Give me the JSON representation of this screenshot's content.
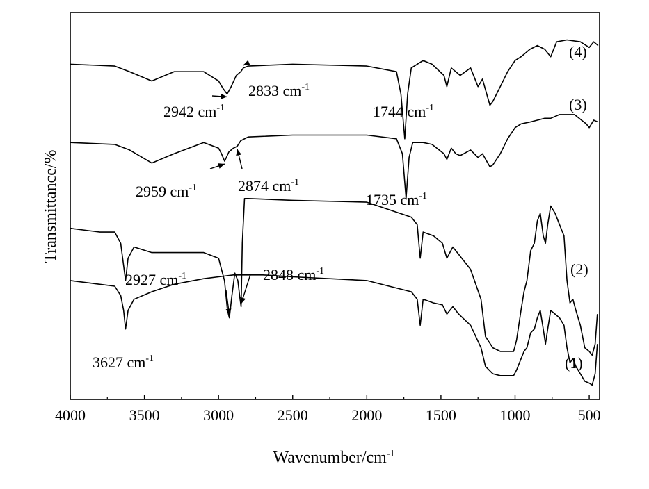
{
  "chart_data": {
    "type": "line",
    "xlabel": "Wavenumber/cm",
    "xlabel_sup": "-1",
    "ylabel": "Transmittance/%",
    "xlim": [
      4000,
      430
    ],
    "x_ticks": [
      4000,
      3500,
      3000,
      2500,
      2000,
      1500,
      1000,
      500
    ],
    "x_tick_labels": [
      "4000",
      "3500",
      "3000",
      "2500",
      "2000",
      "1500",
      "1000",
      "500"
    ],
    "y_ticks_shown": false,
    "grid": false,
    "series": [
      {
        "name": "(4)",
        "baseline": 0.88,
        "points": [
          [
            4000,
            0.88
          ],
          [
            3700,
            0.875
          ],
          [
            3600,
            0.86
          ],
          [
            3450,
            0.835
          ],
          [
            3300,
            0.86
          ],
          [
            3100,
            0.86
          ],
          [
            3000,
            0.835
          ],
          [
            2970,
            0.815
          ],
          [
            2942,
            0.8
          ],
          [
            2915,
            0.82
          ],
          [
            2880,
            0.85
          ],
          [
            2850,
            0.86
          ],
          [
            2833,
            0.87
          ],
          [
            2800,
            0.875
          ],
          [
            2500,
            0.88
          ],
          [
            2000,
            0.875
          ],
          [
            1800,
            0.86
          ],
          [
            1770,
            0.8
          ],
          [
            1744,
            0.68
          ],
          [
            1725,
            0.8
          ],
          [
            1700,
            0.87
          ],
          [
            1620,
            0.89
          ],
          [
            1560,
            0.88
          ],
          [
            1480,
            0.85
          ],
          [
            1460,
            0.82
          ],
          [
            1430,
            0.87
          ],
          [
            1400,
            0.86
          ],
          [
            1370,
            0.85
          ],
          [
            1300,
            0.87
          ],
          [
            1250,
            0.82
          ],
          [
            1220,
            0.84
          ],
          [
            1170,
            0.77
          ],
          [
            1150,
            0.78
          ],
          [
            1100,
            0.82
          ],
          [
            1050,
            0.86
          ],
          [
            1000,
            0.89
          ],
          [
            960,
            0.9
          ],
          [
            900,
            0.92
          ],
          [
            850,
            0.93
          ],
          [
            800,
            0.92
          ],
          [
            760,
            0.9
          ],
          [
            720,
            0.94
          ],
          [
            650,
            0.945
          ],
          [
            560,
            0.94
          ],
          [
            500,
            0.925
          ],
          [
            470,
            0.94
          ],
          [
            440,
            0.93
          ]
        ]
      },
      {
        "name": "(3)",
        "baseline": 0.67,
        "points": [
          [
            4000,
            0.67
          ],
          [
            3700,
            0.665
          ],
          [
            3600,
            0.65
          ],
          [
            3450,
            0.615
          ],
          [
            3300,
            0.64
          ],
          [
            3100,
            0.67
          ],
          [
            3000,
            0.655
          ],
          [
            2980,
            0.64
          ],
          [
            2959,
            0.62
          ],
          [
            2930,
            0.645
          ],
          [
            2900,
            0.655
          ],
          [
            2874,
            0.66
          ],
          [
            2850,
            0.675
          ],
          [
            2800,
            0.685
          ],
          [
            2500,
            0.69
          ],
          [
            2000,
            0.69
          ],
          [
            1800,
            0.68
          ],
          [
            1760,
            0.64
          ],
          [
            1735,
            0.52
          ],
          [
            1715,
            0.63
          ],
          [
            1690,
            0.67
          ],
          [
            1620,
            0.67
          ],
          [
            1560,
            0.665
          ],
          [
            1480,
            0.64
          ],
          [
            1460,
            0.625
          ],
          [
            1430,
            0.655
          ],
          [
            1400,
            0.64
          ],
          [
            1370,
            0.635
          ],
          [
            1300,
            0.65
          ],
          [
            1250,
            0.63
          ],
          [
            1220,
            0.64
          ],
          [
            1170,
            0.605
          ],
          [
            1150,
            0.61
          ],
          [
            1100,
            0.64
          ],
          [
            1050,
            0.68
          ],
          [
            1000,
            0.71
          ],
          [
            960,
            0.72
          ],
          [
            900,
            0.725
          ],
          [
            850,
            0.73
          ],
          [
            800,
            0.735
          ],
          [
            760,
            0.735
          ],
          [
            700,
            0.745
          ],
          [
            600,
            0.745
          ],
          [
            520,
            0.72
          ],
          [
            500,
            0.71
          ],
          [
            470,
            0.73
          ],
          [
            440,
            0.725
          ]
        ]
      },
      {
        "name": "(2)",
        "baseline": 0.44,
        "points": [
          [
            4000,
            0.44
          ],
          [
            3800,
            0.43
          ],
          [
            3700,
            0.43
          ],
          [
            3660,
            0.4
          ],
          [
            3640,
            0.34
          ],
          [
            3627,
            0.3
          ],
          [
            3610,
            0.36
          ],
          [
            3570,
            0.39
          ],
          [
            3450,
            0.375
          ],
          [
            3300,
            0.375
          ],
          [
            3100,
            0.375
          ],
          [
            3000,
            0.36
          ],
          [
            2960,
            0.3
          ],
          [
            2940,
            0.22
          ],
          [
            2927,
            0.2
          ],
          [
            2910,
            0.26
          ],
          [
            2890,
            0.32
          ],
          [
            2870,
            0.3
          ],
          [
            2855,
            0.25
          ],
          [
            2848,
            0.23
          ],
          [
            2840,
            0.4
          ],
          [
            2825,
            0.52
          ],
          [
            2800,
            0.52
          ],
          [
            2500,
            0.515
          ],
          [
            2000,
            0.51
          ],
          [
            1850,
            0.49
          ],
          [
            1700,
            0.47
          ],
          [
            1660,
            0.45
          ],
          [
            1640,
            0.36
          ],
          [
            1620,
            0.43
          ],
          [
            1550,
            0.42
          ],
          [
            1490,
            0.4
          ],
          [
            1460,
            0.36
          ],
          [
            1420,
            0.39
          ],
          [
            1380,
            0.37
          ],
          [
            1300,
            0.33
          ],
          [
            1230,
            0.25
          ],
          [
            1200,
            0.15
          ],
          [
            1150,
            0.12
          ],
          [
            1100,
            0.11
          ],
          [
            1050,
            0.11
          ],
          [
            1010,
            0.11
          ],
          [
            990,
            0.14
          ],
          [
            960,
            0.22
          ],
          [
            940,
            0.27
          ],
          [
            920,
            0.3
          ],
          [
            895,
            0.38
          ],
          [
            870,
            0.4
          ],
          [
            850,
            0.46
          ],
          [
            830,
            0.48
          ],
          [
            810,
            0.42
          ],
          [
            795,
            0.4
          ],
          [
            780,
            0.45
          ],
          [
            760,
            0.5
          ],
          [
            730,
            0.48
          ],
          [
            700,
            0.45
          ],
          [
            670,
            0.42
          ],
          [
            650,
            0.3
          ],
          [
            630,
            0.24
          ],
          [
            610,
            0.25
          ],
          [
            590,
            0.22
          ],
          [
            560,
            0.18
          ],
          [
            530,
            0.12
          ],
          [
            500,
            0.11
          ],
          [
            480,
            0.1
          ],
          [
            460,
            0.13
          ],
          [
            445,
            0.21
          ]
        ]
      },
      {
        "name": "(1)",
        "baseline": 0.3,
        "points": [
          [
            4000,
            0.3
          ],
          [
            3800,
            0.29
          ],
          [
            3700,
            0.285
          ],
          [
            3660,
            0.26
          ],
          [
            3640,
            0.22
          ],
          [
            3627,
            0.17
          ],
          [
            3610,
            0.22
          ],
          [
            3570,
            0.25
          ],
          [
            3450,
            0.27
          ],
          [
            3300,
            0.29
          ],
          [
            3100,
            0.305
          ],
          [
            3000,
            0.31
          ],
          [
            2900,
            0.315
          ],
          [
            2700,
            0.315
          ],
          [
            2500,
            0.31
          ],
          [
            2000,
            0.3
          ],
          [
            1850,
            0.285
          ],
          [
            1700,
            0.27
          ],
          [
            1660,
            0.25
          ],
          [
            1640,
            0.18
          ],
          [
            1620,
            0.25
          ],
          [
            1550,
            0.24
          ],
          [
            1490,
            0.235
          ],
          [
            1460,
            0.21
          ],
          [
            1420,
            0.23
          ],
          [
            1380,
            0.21
          ],
          [
            1300,
            0.18
          ],
          [
            1230,
            0.12
          ],
          [
            1200,
            0.07
          ],
          [
            1150,
            0.05
          ],
          [
            1100,
            0.045
          ],
          [
            1050,
            0.045
          ],
          [
            1010,
            0.045
          ],
          [
            990,
            0.06
          ],
          [
            960,
            0.09
          ],
          [
            940,
            0.11
          ],
          [
            920,
            0.12
          ],
          [
            895,
            0.16
          ],
          [
            870,
            0.17
          ],
          [
            850,
            0.2
          ],
          [
            830,
            0.22
          ],
          [
            810,
            0.17
          ],
          [
            795,
            0.13
          ],
          [
            780,
            0.17
          ],
          [
            760,
            0.22
          ],
          [
            730,
            0.21
          ],
          [
            700,
            0.2
          ],
          [
            670,
            0.18
          ],
          [
            650,
            0.12
          ],
          [
            630,
            0.08
          ],
          [
            610,
            0.09
          ],
          [
            590,
            0.07
          ],
          [
            560,
            0.05
          ],
          [
            530,
            0.03
          ],
          [
            500,
            0.025
          ],
          [
            480,
            0.02
          ],
          [
            460,
            0.05
          ],
          [
            445,
            0.13
          ]
        ]
      }
    ],
    "annotations": [
      {
        "text": "2942 cm",
        "sup": "-1",
        "peak_x": 2942,
        "series": "(4)"
      },
      {
        "text": "2833 cm",
        "sup": "-1",
        "peak_x": 2833,
        "series": "(4)"
      },
      {
        "text": "1744 cm",
        "sup": "-1",
        "peak_x": 1744,
        "series": "(4)"
      },
      {
        "text": "2959 cm",
        "sup": "-1",
        "peak_x": 2959,
        "series": "(3)"
      },
      {
        "text": "2874 cm",
        "sup": "-1",
        "peak_x": 2874,
        "series": "(3)"
      },
      {
        "text": "1735 cm",
        "sup": "-1",
        "peak_x": 1735,
        "series": "(3)"
      },
      {
        "text": "2927 cm",
        "sup": "-1",
        "peak_x": 2927,
        "series": "(2)"
      },
      {
        "text": "2848 cm",
        "sup": "-1",
        "peak_x": 2848,
        "series": "(2)"
      },
      {
        "text": "3627 cm",
        "sup": "-1",
        "peak_x": 3627,
        "series": "(1)"
      }
    ],
    "series_labels": [
      "(4)",
      "(3)",
      "(2)",
      "(1)"
    ]
  }
}
